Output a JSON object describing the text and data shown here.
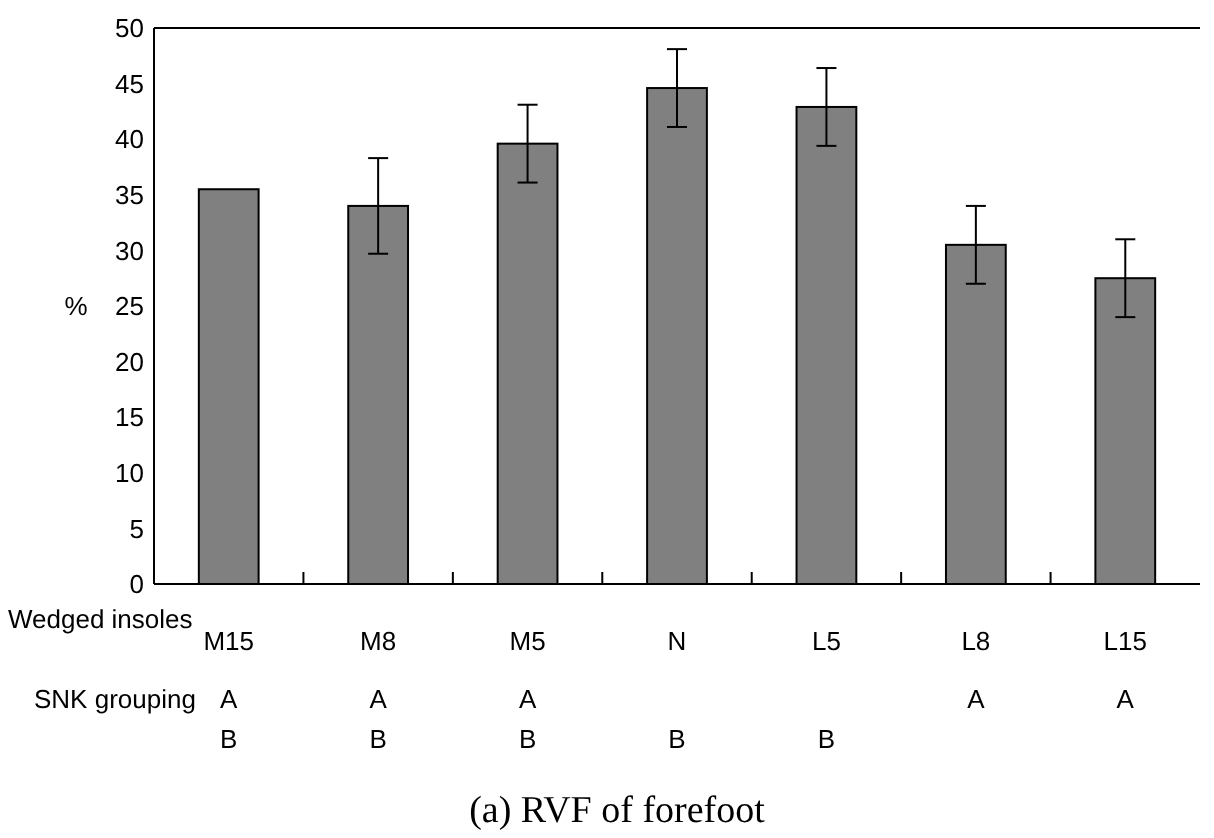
{
  "chart_data": {
    "type": "bar",
    "title": "(a) RVF of forefoot",
    "xlabel": "Wedged insoles",
    "ylabel": "%",
    "categories": [
      "M15",
      "M8",
      "M5",
      "N",
      "L5",
      "L8",
      "L15"
    ],
    "values": [
      35.5,
      34.0,
      39.6,
      44.6,
      42.9,
      30.5,
      27.5
    ],
    "errors": [
      null,
      4.3,
      3.5,
      3.5,
      3.5,
      3.5,
      3.5
    ],
    "color": "#808080",
    "ylim": [
      0,
      50
    ],
    "yticks": [
      0,
      5,
      10,
      15,
      20,
      25,
      30,
      35,
      40,
      45,
      50
    ],
    "grid": false,
    "annotations": [
      "SNK grouping",
      "A\nB",
      "A\nB",
      "A\nB",
      "B",
      "B",
      "A",
      "A"
    ]
  }
}
